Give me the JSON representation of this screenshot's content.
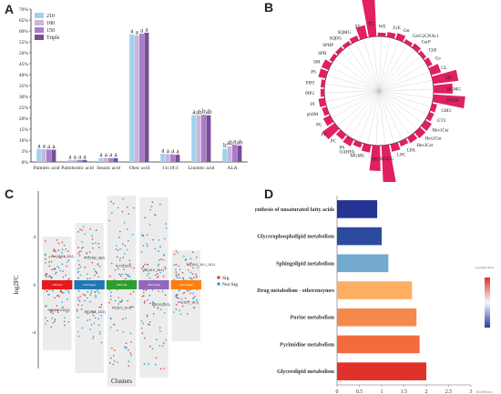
{
  "panels": [
    "A",
    "B",
    "C",
    "D"
  ],
  "chart_data": [
    {
      "type": "bar",
      "panel": "A",
      "categories": [
        "Palmitic acid",
        "Palmitoleic acid",
        "Stearic acid",
        "Oleic acid",
        "11c18:1",
        "Linoleic acid",
        "ALA"
      ],
      "series": [
        {
          "name": "210",
          "color": "#9fd3ec",
          "values": [
            5.9,
            0.9,
            1.8,
            58.5,
            3.7,
            21.5,
            6.0
          ]
        },
        {
          "name": "180",
          "color": "#c9b4de",
          "values": [
            5.8,
            0.9,
            1.9,
            58.0,
            3.6,
            21.3,
            7.2
          ]
        },
        {
          "name": "150",
          "color": "#a77fc9",
          "values": [
            5.7,
            0.9,
            1.8,
            58.7,
            3.5,
            21.6,
            8.0
          ]
        },
        {
          "name": "Triple",
          "color": "#7a4c9c",
          "values": [
            5.6,
            0.9,
            1.8,
            59.2,
            3.3,
            21.4,
            7.5
          ]
        }
      ],
      "sig_letters": [
        [
          "a",
          "a",
          "a",
          "a"
        ],
        [
          "a",
          "a",
          "a",
          "a"
        ],
        [
          "a",
          "a",
          "a",
          "a"
        ],
        [
          "a",
          "a",
          "a",
          "a"
        ],
        [
          "a",
          "a",
          "a",
          "a"
        ],
        [
          "a",
          "ab",
          "b",
          "ab"
        ],
        [
          "b",
          "ab",
          "a",
          "ab"
        ]
      ],
      "y_ticks": [
        "0%",
        "5%",
        "10%",
        "15%",
        "20%",
        "25%",
        "30%",
        "35%",
        "40%",
        "45%",
        "50%",
        "55%",
        "60%",
        "65%",
        "70%"
      ],
      "ylim": [
        0,
        70
      ],
      "legend_position": "top-left"
    },
    {
      "type": "radial-bar",
      "panel": "B",
      "categories": [
        "WE",
        "ZyE",
        "Cer",
        "CerG2GNAc1",
        "CerP",
        "ChE",
        "Co",
        "CL",
        "DG",
        "DGMG",
        "DGDG",
        "GM3",
        "GT3",
        "Hex1Cer",
        "Hex2Cer",
        "Hex3Cer",
        "LPA",
        "LPC",
        "MGDG",
        "MG",
        "MGMG",
        "OAHFA",
        "PA",
        "PC",
        "PE",
        "PG",
        "phSM",
        "PI",
        "PIP2",
        "PIP3",
        "PS",
        "SM",
        "SPH",
        "SPHP",
        "SQDG",
        "SQMG",
        "ST",
        "TG"
      ],
      "values": [
        0.3,
        0.4,
        0.5,
        0.3,
        0.4,
        0.3,
        0.4,
        0.8,
        2.0,
        1.5,
        2.5,
        0.4,
        0.4,
        0.6,
        0.6,
        0.5,
        0.4,
        0.6,
        3.0,
        2.0,
        0.6,
        0.4,
        0.6,
        0.5,
        1.2,
        0.6,
        0.4,
        0.5,
        0.3,
        0.3,
        0.6,
        0.6,
        0.3,
        0.3,
        0.3,
        0.4,
        1.0,
        4.2
      ],
      "color": "#e0205f"
    },
    {
      "type": "scatter",
      "panel": "C",
      "categories": [
        "150/210",
        "150/Triple",
        "180/150",
        "180/Triple",
        "210/Triple"
      ],
      "xlabel": "Clusters",
      "ylabel": "log2FC",
      "y_ticks": [
        "4",
        "0",
        "-4"
      ],
      "legend": [
        {
          "name": "Sig",
          "color": "#d94545"
        },
        {
          "name": "Not Sig",
          "color": "#2a9fd6"
        }
      ],
      "strip_colors": [
        "#e41a1c",
        "#1f77b4",
        "#2ca02c",
        "#9467bd",
        "#ff7f0e"
      ],
      "labels": [
        "Cer(d18:1_24:0)",
        "PC(15:0_18:2)",
        "LPC(18:0)",
        "PE(16:0_18:1)",
        "TG(16:0_18:1_18:2)",
        "SM(d18:1/16:0)",
        "DG(18:1_18:2)",
        "PI(18:0_20:4)",
        "MGDG(18:3)",
        "PG(16:0_18:1)"
      ]
    },
    {
      "type": "bar",
      "orientation": "horizontal",
      "panel": "D",
      "categories": [
        "Biosynthesis of unsaturated fatty acids",
        "Glycerophospholipid metabolism",
        "Sphingolipid metabolism",
        "Drug metabolism - otherenzymes",
        "Purine metabolism",
        "Pyrimidine metabolism",
        "Glycerolipid metabolism"
      ],
      "values": [
        0.9,
        1.0,
        1.15,
        1.68,
        1.78,
        1.85,
        2.0
      ],
      "colors": [
        "#253494",
        "#2c4a9e",
        "#74a9cf",
        "#fdae61",
        "#f4894b",
        "#f26b3a",
        "#e0312a"
      ],
      "x_ticks": [
        "0",
        "0.5",
        "1",
        "1.5",
        "2",
        "2.5",
        "3"
      ],
      "xlim": [
        0,
        3
      ],
      "xlabel": "RichFactor",
      "colorbar_label": "-log10(pvalue)"
    }
  ]
}
